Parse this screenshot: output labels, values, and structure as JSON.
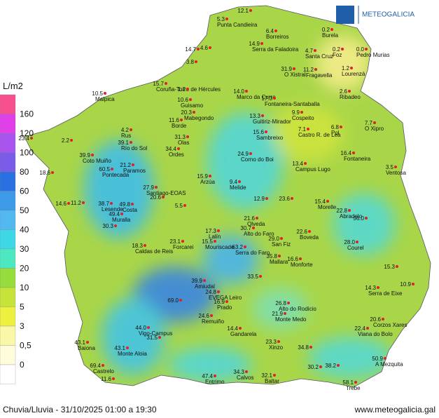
{
  "header": {
    "brand": "METEOGALICIA"
  },
  "legend": {
    "unit": "L/m2",
    "labels": [
      "160",
      "120",
      "100",
      "80",
      "60",
      "50",
      "40",
      "30",
      "20",
      "10",
      "5",
      "3",
      "0,5",
      "0"
    ],
    "colors": [
      "#f7508f",
      "#e040e8",
      "#a855f0",
      "#7b5ce8",
      "#2a70e0",
      "#3c9ae8",
      "#52b8f0",
      "#3ed7e6",
      "#4de8c2",
      "#95dc3c",
      "#c6e33a",
      "#eef040",
      "#f8f8a8",
      "#fffcdc",
      "#ffffff"
    ]
  },
  "stations": [
    {
      "value": "5.3",
      "name": "Punta Candieira"
    },
    {
      "value": "12.1"
    },
    {
      "value": "6.4",
      "name": "Borreiros"
    },
    {
      "value": "0.2",
      "name": "Burela"
    },
    {
      "value": "14.9",
      "name": "Serra da Faladoira"
    },
    {
      "value": "14.7"
    },
    {
      "value": "4.6"
    },
    {
      "value": "4.7",
      "name": "Santa Cruz"
    },
    {
      "value": "0.2",
      "name": "Foz"
    },
    {
      "value": "0.0",
      "name": "Pedro Murias"
    },
    {
      "value": "3.8"
    },
    {
      "value": "31.9",
      "name": "O Xistral"
    },
    {
      "value": "11.2",
      "name": "Fragavella"
    },
    {
      "value": "1.2",
      "name": "Lourenzá"
    },
    {
      "value": "15.7",
      "name": "Coruña-Torre de Hércules"
    },
    {
      "value": "1.2"
    },
    {
      "value": "10.5",
      "name": "Malpica"
    },
    {
      "value": "14.0",
      "name": "Marco da Curra"
    },
    {
      "value": "17.3",
      "name": "Fontaneira-Santaballa"
    },
    {
      "value": "2.6",
      "name": "Ribadeo"
    },
    {
      "value": "10.6",
      "name": "Guisamo"
    },
    {
      "value": "20.3",
      "name": "Mabegondo"
    },
    {
      "value": "11.6",
      "name": "Borde"
    },
    {
      "value": "13.3",
      "name": "Guitiriz-Mirador"
    },
    {
      "value": "9.9",
      "name": "Cospeito"
    },
    {
      "value": "6.8",
      "name": "Pol"
    },
    {
      "value": "7.7",
      "name": "O Xipro"
    },
    {
      "value": "4.2",
      "name": "Rus"
    },
    {
      "value": "23.4"
    },
    {
      "value": "2.2"
    },
    {
      "value": "15.6",
      "name": "Sambreixo"
    },
    {
      "value": "7.1",
      "name": "Castro R. de Lea"
    },
    {
      "value": "31.3",
      "name": "Olas"
    },
    {
      "value": "39.1",
      "name": "Río do Sol"
    },
    {
      "value": "34.4",
      "name": "Ordes"
    },
    {
      "value": "39.9",
      "name": "Coto Muiño"
    },
    {
      "value": "16.4",
      "name": "Fontaneira"
    },
    {
      "value": "24.9",
      "name": "Corno do Boi"
    },
    {
      "value": "21.2",
      "name": "Paramos"
    },
    {
      "value": "13.4",
      "name": "Campus Lugo"
    },
    {
      "value": "60.5",
      "name": "Pontecada"
    },
    {
      "value": "3.5",
      "name": "Ventosa"
    },
    {
      "value": "18.6"
    },
    {
      "value": "15.9",
      "name": "Arzúa"
    },
    {
      "value": "9.4",
      "name": "Melide"
    },
    {
      "value": "27.9",
      "name": "Santiago-EOAS"
    },
    {
      "value": "20.6"
    },
    {
      "value": "12.9"
    },
    {
      "value": "23.6"
    },
    {
      "value": "15.4",
      "name": "Morelle"
    },
    {
      "value": "14.6"
    },
    {
      "value": "11.2"
    },
    {
      "value": "38.7",
      "name": "Lesende"
    },
    {
      "value": "49.8",
      "name": "Costa"
    },
    {
      "value": "5.5"
    },
    {
      "value": "22.8",
      "name": "Abradelo"
    },
    {
      "value": "49.4",
      "name": "Muralla"
    },
    {
      "value": "21.6",
      "name": "Olveda"
    },
    {
      "value": "56.0"
    },
    {
      "value": "30.3"
    },
    {
      "value": "30.7",
      "name": "Alto do Faro"
    },
    {
      "value": "17.3",
      "name": "Lalín"
    },
    {
      "value": "22.6",
      "name": "Boveda"
    },
    {
      "value": "15.5",
      "name": "Mouriscade"
    },
    {
      "value": "23.1",
      "name": "Forcarei"
    },
    {
      "value": "18.3",
      "name": "Caldas de Reis"
    },
    {
      "value": "29.0",
      "name": "San Fiz"
    },
    {
      "value": "28.0",
      "name": "Courel"
    },
    {
      "value": "63.2",
      "name": "Serra do Faro"
    },
    {
      "value": "35.8",
      "name": "Mallara"
    },
    {
      "value": "16.6",
      "name": "Monforte"
    },
    {
      "value": "33.5"
    },
    {
      "value": "39.9",
      "name": "Amiudal"
    },
    {
      "value": "69.0"
    },
    {
      "value": "14.4",
      "name": "Gandarela"
    },
    {
      "value": "23.3",
      "name": "Xinzo"
    },
    {
      "value": "34.8"
    },
    {
      "value": "30.2"
    },
    {
      "value": "38.2"
    },
    {
      "value": "50.9",
      "name": "A Mezquita"
    },
    {
      "value": "58.1",
      "name": "Trebe"
    },
    {
      "value": "34.3",
      "name": "Calvos"
    },
    {
      "value": "32.1",
      "name": "Baltar"
    },
    {
      "value": "47.4",
      "name": "Entrimo"
    },
    {
      "value": "69.4",
      "name": "Castrelo"
    },
    {
      "value": "11.6"
    },
    {
      "value": "43.1",
      "name": "Monte Aloia"
    },
    {
      "value": "43.1",
      "name": "Baiona"
    },
    {
      "value": "44.0",
      "name": "Vigo-Campus"
    },
    {
      "value": "31.5"
    },
    {
      "value": "21.9",
      "name": "Monte Medo"
    },
    {
      "value": "26.8",
      "name": "Alto do Rodicio"
    },
    {
      "value": "22.4",
      "name": "Viana do Bolo"
    },
    {
      "value": "20.6",
      "name": "Corzos Xares"
    },
    {
      "value": "14.3",
      "name": "Serra de Eixe"
    },
    {
      "value": "10.9"
    },
    {
      "value": "15.3"
    },
    {
      "value": "24.8",
      "name": "EVEGA Leiro"
    },
    {
      "value": "16.9",
      "name": "Prado"
    },
    {
      "value": "24.6",
      "name": "Remuiño"
    }
  ],
  "footer": {
    "caption": "Chuvia/Lluvia - 31/10/2025 01:00 a 19:30",
    "url": "www.meteogalicia.gal"
  }
}
